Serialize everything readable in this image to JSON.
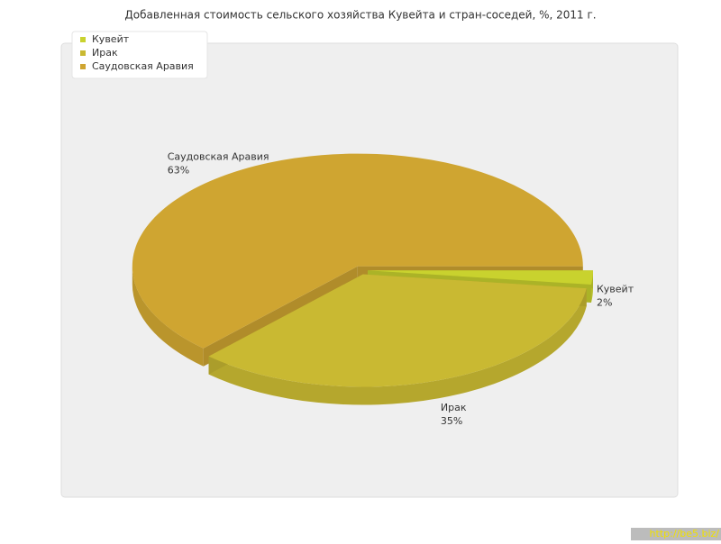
{
  "chart_data": {
    "type": "pie3d",
    "title": "Добавленная стоимость сельского хозяйства Кувейта и стран-соседей, %, 2011 г.",
    "categories": [
      "Кувейт",
      "Ирак",
      "Саудовская Аравия"
    ],
    "values": [
      2,
      35,
      63
    ],
    "value_labels": [
      "2%",
      "35%",
      "63%"
    ],
    "colors": [
      "#c9d22e",
      "#c9b932",
      "#cfa531"
    ],
    "legend": "top-left"
  },
  "watermark": "http://be5.biz/"
}
